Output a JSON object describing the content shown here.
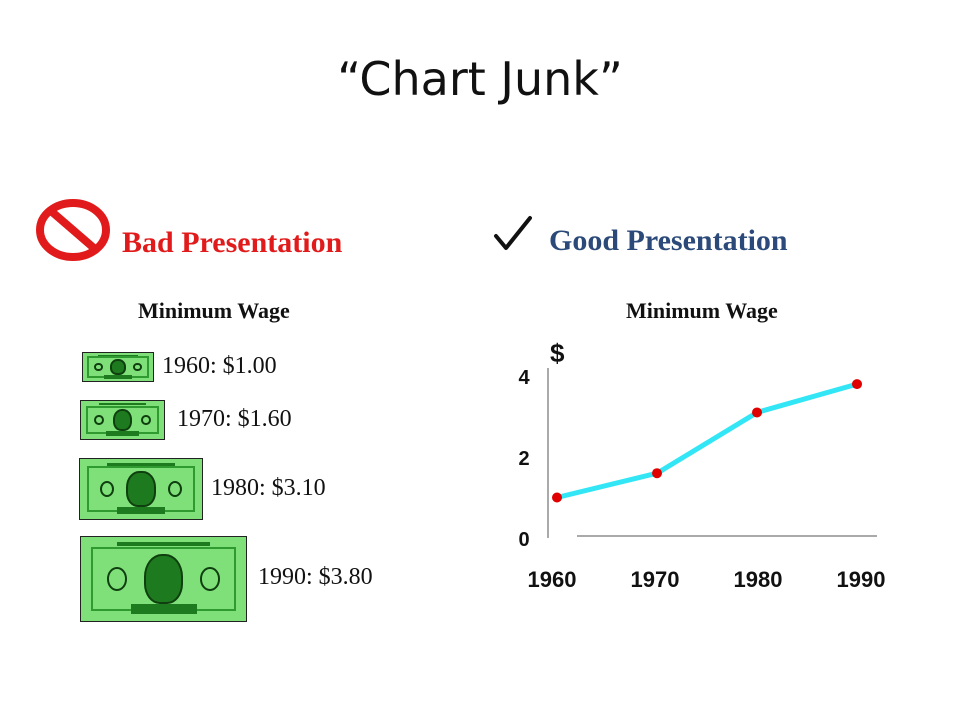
{
  "slide": {
    "title": "“Chart Junk”",
    "bad": {
      "heading": "Bad Presentation",
      "subtitle": "Minimum Wage"
    },
    "good": {
      "heading": "Good Presentation",
      "subtitle": "Minimum Wage"
    },
    "icons": {
      "bad": "no-symbol-icon",
      "good": "check-mark-icon",
      "bill": "dollar-bill-icon"
    },
    "colors": {
      "bad": "#e11b1b",
      "good": "#2b4a7a",
      "line": "#33e6f5",
      "marker": "#e00000",
      "bill": "#7fe07a"
    }
  },
  "bills": [
    {
      "label": "1960: $1.00",
      "value": 1.0
    },
    {
      "label": "1970: $1.60",
      "value": 1.6
    },
    {
      "label": "1980: $3.10",
      "value": 3.1
    },
    {
      "label": "1990: $3.80",
      "value": 3.8
    }
  ],
  "chart_data": {
    "type": "line",
    "title": "Minimum Wage",
    "ylabel": "$",
    "xlabel": "",
    "x": [
      1960,
      1970,
      1980,
      1990
    ],
    "series": [
      {
        "values": [
          1.0,
          1.6,
          3.1,
          3.8
        ]
      }
    ],
    "xticks": [
      "1960",
      "1970",
      "1980",
      "1990"
    ],
    "yticks": [
      "0",
      "2",
      "4"
    ],
    "ylim": [
      0,
      4
    ],
    "grid": false,
    "legend": "none"
  }
}
